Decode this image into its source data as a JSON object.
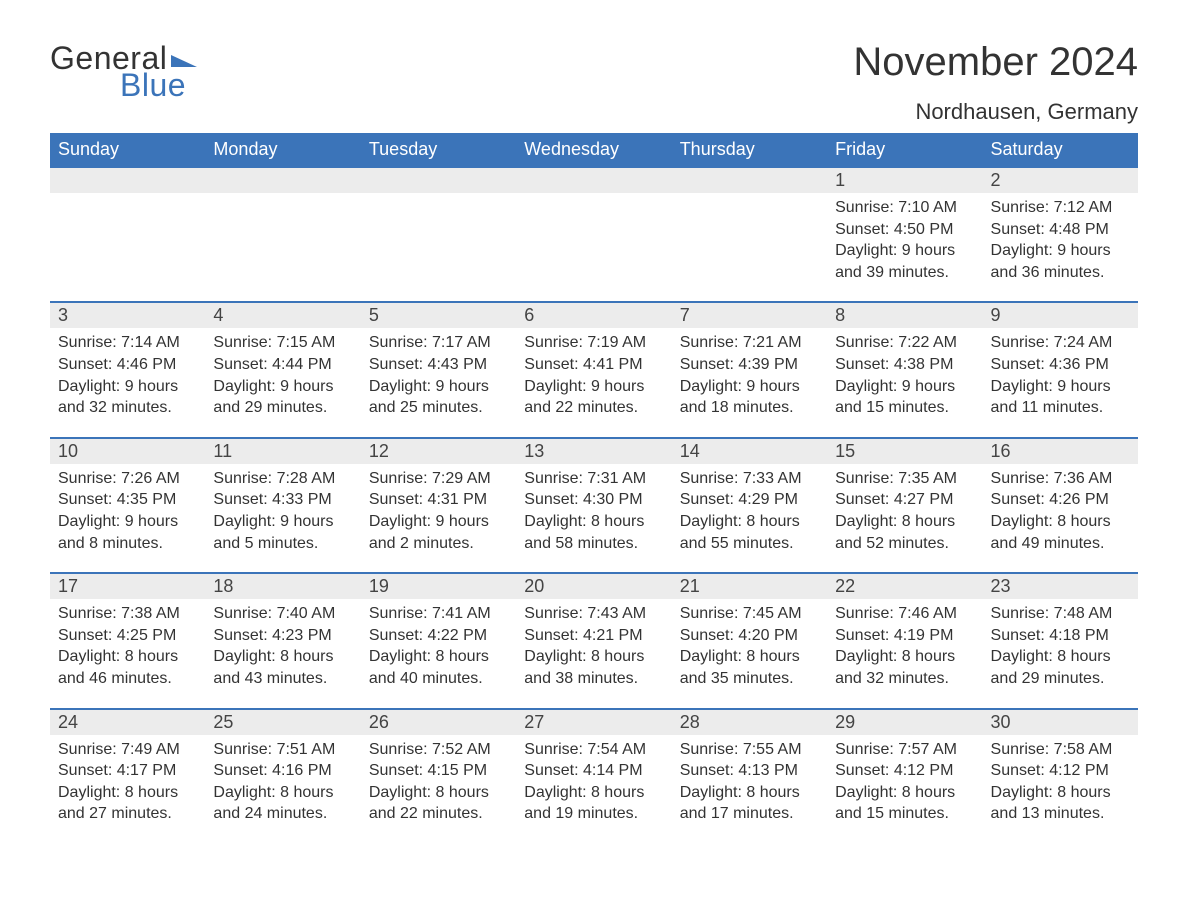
{
  "logo": {
    "part1": "General",
    "part2": "Blue"
  },
  "title": "November 2024",
  "location": "Nordhausen, Germany",
  "colors": {
    "header_bg": "#3b74b9",
    "header_text": "#ffffff",
    "daynum_bg": "#ececec",
    "row_border": "#3b74b9",
    "text": "#333333",
    "logo_blue": "#3b74b9",
    "background": "#ffffff"
  },
  "fonts": {
    "title_size_pt": 30,
    "location_size_pt": 17,
    "header_size_pt": 14,
    "daynum_size_pt": 14,
    "body_size_pt": 12
  },
  "dow": [
    "Sunday",
    "Monday",
    "Tuesday",
    "Wednesday",
    "Thursday",
    "Friday",
    "Saturday"
  ],
  "weeks": [
    [
      null,
      null,
      null,
      null,
      null,
      {
        "n": "1",
        "sr": "Sunrise: 7:10 AM",
        "ss": "Sunset: 4:50 PM",
        "d1": "Daylight: 9 hours",
        "d2": "and 39 minutes."
      },
      {
        "n": "2",
        "sr": "Sunrise: 7:12 AM",
        "ss": "Sunset: 4:48 PM",
        "d1": "Daylight: 9 hours",
        "d2": "and 36 minutes."
      }
    ],
    [
      {
        "n": "3",
        "sr": "Sunrise: 7:14 AM",
        "ss": "Sunset: 4:46 PM",
        "d1": "Daylight: 9 hours",
        "d2": "and 32 minutes."
      },
      {
        "n": "4",
        "sr": "Sunrise: 7:15 AM",
        "ss": "Sunset: 4:44 PM",
        "d1": "Daylight: 9 hours",
        "d2": "and 29 minutes."
      },
      {
        "n": "5",
        "sr": "Sunrise: 7:17 AM",
        "ss": "Sunset: 4:43 PM",
        "d1": "Daylight: 9 hours",
        "d2": "and 25 minutes."
      },
      {
        "n": "6",
        "sr": "Sunrise: 7:19 AM",
        "ss": "Sunset: 4:41 PM",
        "d1": "Daylight: 9 hours",
        "d2": "and 22 minutes."
      },
      {
        "n": "7",
        "sr": "Sunrise: 7:21 AM",
        "ss": "Sunset: 4:39 PM",
        "d1": "Daylight: 9 hours",
        "d2": "and 18 minutes."
      },
      {
        "n": "8",
        "sr": "Sunrise: 7:22 AM",
        "ss": "Sunset: 4:38 PM",
        "d1": "Daylight: 9 hours",
        "d2": "and 15 minutes."
      },
      {
        "n": "9",
        "sr": "Sunrise: 7:24 AM",
        "ss": "Sunset: 4:36 PM",
        "d1": "Daylight: 9 hours",
        "d2": "and 11 minutes."
      }
    ],
    [
      {
        "n": "10",
        "sr": "Sunrise: 7:26 AM",
        "ss": "Sunset: 4:35 PM",
        "d1": "Daylight: 9 hours",
        "d2": "and 8 minutes."
      },
      {
        "n": "11",
        "sr": "Sunrise: 7:28 AM",
        "ss": "Sunset: 4:33 PM",
        "d1": "Daylight: 9 hours",
        "d2": "and 5 minutes."
      },
      {
        "n": "12",
        "sr": "Sunrise: 7:29 AM",
        "ss": "Sunset: 4:31 PM",
        "d1": "Daylight: 9 hours",
        "d2": "and 2 minutes."
      },
      {
        "n": "13",
        "sr": "Sunrise: 7:31 AM",
        "ss": "Sunset: 4:30 PM",
        "d1": "Daylight: 8 hours",
        "d2": "and 58 minutes."
      },
      {
        "n": "14",
        "sr": "Sunrise: 7:33 AM",
        "ss": "Sunset: 4:29 PM",
        "d1": "Daylight: 8 hours",
        "d2": "and 55 minutes."
      },
      {
        "n": "15",
        "sr": "Sunrise: 7:35 AM",
        "ss": "Sunset: 4:27 PM",
        "d1": "Daylight: 8 hours",
        "d2": "and 52 minutes."
      },
      {
        "n": "16",
        "sr": "Sunrise: 7:36 AM",
        "ss": "Sunset: 4:26 PM",
        "d1": "Daylight: 8 hours",
        "d2": "and 49 minutes."
      }
    ],
    [
      {
        "n": "17",
        "sr": "Sunrise: 7:38 AM",
        "ss": "Sunset: 4:25 PM",
        "d1": "Daylight: 8 hours",
        "d2": "and 46 minutes."
      },
      {
        "n": "18",
        "sr": "Sunrise: 7:40 AM",
        "ss": "Sunset: 4:23 PM",
        "d1": "Daylight: 8 hours",
        "d2": "and 43 minutes."
      },
      {
        "n": "19",
        "sr": "Sunrise: 7:41 AM",
        "ss": "Sunset: 4:22 PM",
        "d1": "Daylight: 8 hours",
        "d2": "and 40 minutes."
      },
      {
        "n": "20",
        "sr": "Sunrise: 7:43 AM",
        "ss": "Sunset: 4:21 PM",
        "d1": "Daylight: 8 hours",
        "d2": "and 38 minutes."
      },
      {
        "n": "21",
        "sr": "Sunrise: 7:45 AM",
        "ss": "Sunset: 4:20 PM",
        "d1": "Daylight: 8 hours",
        "d2": "and 35 minutes."
      },
      {
        "n": "22",
        "sr": "Sunrise: 7:46 AM",
        "ss": "Sunset: 4:19 PM",
        "d1": "Daylight: 8 hours",
        "d2": "and 32 minutes."
      },
      {
        "n": "23",
        "sr": "Sunrise: 7:48 AM",
        "ss": "Sunset: 4:18 PM",
        "d1": "Daylight: 8 hours",
        "d2": "and 29 minutes."
      }
    ],
    [
      {
        "n": "24",
        "sr": "Sunrise: 7:49 AM",
        "ss": "Sunset: 4:17 PM",
        "d1": "Daylight: 8 hours",
        "d2": "and 27 minutes."
      },
      {
        "n": "25",
        "sr": "Sunrise: 7:51 AM",
        "ss": "Sunset: 4:16 PM",
        "d1": "Daylight: 8 hours",
        "d2": "and 24 minutes."
      },
      {
        "n": "26",
        "sr": "Sunrise: 7:52 AM",
        "ss": "Sunset: 4:15 PM",
        "d1": "Daylight: 8 hours",
        "d2": "and 22 minutes."
      },
      {
        "n": "27",
        "sr": "Sunrise: 7:54 AM",
        "ss": "Sunset: 4:14 PM",
        "d1": "Daylight: 8 hours",
        "d2": "and 19 minutes."
      },
      {
        "n": "28",
        "sr": "Sunrise: 7:55 AM",
        "ss": "Sunset: 4:13 PM",
        "d1": "Daylight: 8 hours",
        "d2": "and 17 minutes."
      },
      {
        "n": "29",
        "sr": "Sunrise: 7:57 AM",
        "ss": "Sunset: 4:12 PM",
        "d1": "Daylight: 8 hours",
        "d2": "and 15 minutes."
      },
      {
        "n": "30",
        "sr": "Sunrise: 7:58 AM",
        "ss": "Sunset: 4:12 PM",
        "d1": "Daylight: 8 hours",
        "d2": "and 13 minutes."
      }
    ]
  ]
}
